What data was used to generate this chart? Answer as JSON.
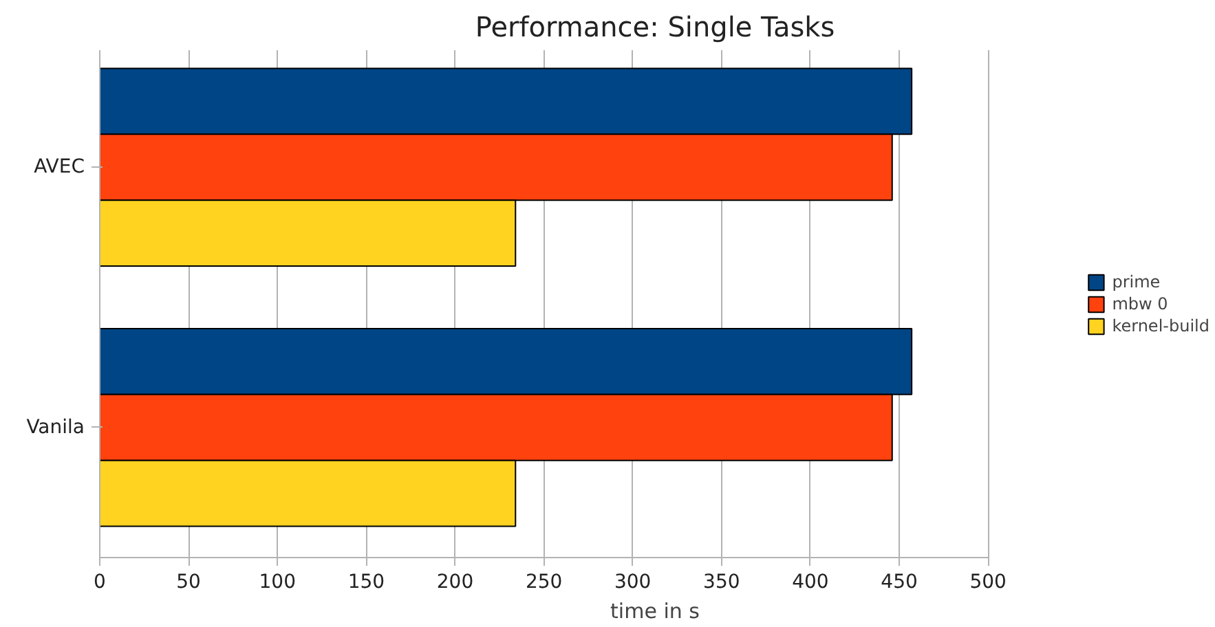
{
  "chart_data": {
    "type": "bar",
    "orientation": "horizontal",
    "title": "Performance: Single Tasks",
    "xlabel": "time in s",
    "categories": [
      "AVEC",
      "Vanila"
    ],
    "series": [
      {
        "name": "prime",
        "color": "#004586",
        "values": [
          457,
          457
        ]
      },
      {
        "name": "mbw 0",
        "color": "#ff420e",
        "values": [
          446,
          446
        ]
      },
      {
        "name": "kernel-build",
        "color": "#ffd320",
        "values": [
          234,
          234
        ]
      }
    ],
    "xlim": [
      0,
      500
    ],
    "xticks": [
      0,
      50,
      100,
      150,
      200,
      250,
      300,
      350,
      400,
      450,
      500
    ],
    "grid": "x",
    "legend": "right"
  }
}
